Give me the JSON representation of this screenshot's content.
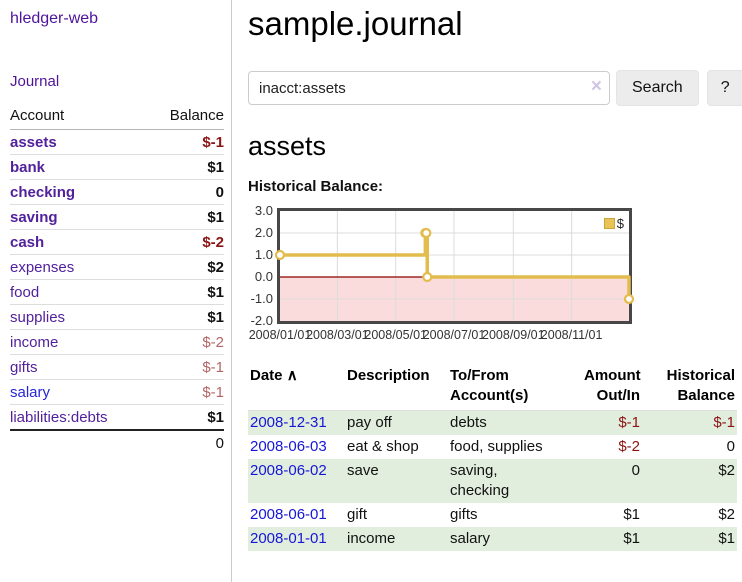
{
  "app": {
    "brand": "hledger-web"
  },
  "nav": {
    "journal": "Journal"
  },
  "sidebar": {
    "columns": {
      "account": "Account",
      "balance": "Balance"
    },
    "accounts": [
      {
        "name": "assets",
        "balance": "$-1",
        "indent": 1,
        "bold": true,
        "name_color": "purple",
        "balance_style": "neg"
      },
      {
        "name": "bank",
        "balance": "$1",
        "indent": 2,
        "bold": true,
        "name_color": "purple",
        "balance_style": "pos"
      },
      {
        "name": "checking",
        "balance": "0",
        "indent": 3,
        "bold": true,
        "name_color": "purple",
        "balance_style": "pos"
      },
      {
        "name": "saving",
        "balance": "$1",
        "indent": 3,
        "bold": true,
        "name_color": "purple",
        "balance_style": "pos"
      },
      {
        "name": "cash",
        "balance": "$-2",
        "indent": 2,
        "bold": true,
        "name_color": "purple",
        "balance_style": "neg"
      },
      {
        "name": "expenses",
        "balance": "$2",
        "indent": 1,
        "bold": false,
        "name_color": "purple",
        "balance_style": "pos"
      },
      {
        "name": "food",
        "balance": "$1",
        "indent": 2,
        "bold": false,
        "name_color": "purple",
        "balance_style": "pos"
      },
      {
        "name": "supplies",
        "balance": "$1",
        "indent": 2,
        "bold": false,
        "name_color": "purple",
        "balance_style": "pos"
      },
      {
        "name": "income",
        "balance": "$-2",
        "indent": 1,
        "bold": false,
        "name_color": "purple",
        "balance_style": "negsoft"
      },
      {
        "name": "gifts",
        "balance": "$-1",
        "indent": 2,
        "bold": false,
        "name_color": "purple",
        "balance_style": "negsoft"
      },
      {
        "name": "salary",
        "balance": "$-1",
        "indent": 2,
        "bold": false,
        "name_color": "blue",
        "balance_style": "negsoft"
      },
      {
        "name": "liabilities:debts",
        "balance": "$1",
        "indent": 1,
        "bold": false,
        "name_color": "purple",
        "balance_style": "pos"
      }
    ],
    "total": "0"
  },
  "main": {
    "title": "sample.journal",
    "search": {
      "value": "inacct:assets",
      "clear_icon": "×",
      "button": "Search",
      "help": "?"
    },
    "heading": "assets",
    "chart_title": "Historical Balance:"
  },
  "chart_data": {
    "type": "line",
    "title": "Historical Balance",
    "step": true,
    "x_range": [
      "2008-01-01",
      "2008-12-31"
    ],
    "ylim": [
      -2,
      3
    ],
    "y_ticks": [
      3,
      2,
      1,
      0,
      -1,
      -2
    ],
    "y_tick_labels": [
      "3.0",
      "2.0",
      "1.0",
      "0.0",
      "-1.0",
      "-2.0"
    ],
    "x_tick_labels": [
      "2008/01/01",
      "2008/03/01",
      "2008/05/01",
      "2008/07/01",
      "2008/09/01",
      "2008/11/01"
    ],
    "series": [
      {
        "name": "$",
        "color": "#e3bc4e",
        "points": [
          [
            "2008-01-01",
            1
          ],
          [
            "2008-06-01",
            2
          ],
          [
            "2008-06-02",
            2
          ],
          [
            "2008-06-03",
            0
          ],
          [
            "2008-12-31",
            -1
          ]
        ]
      }
    ],
    "legend": [
      {
        "label": "$",
        "color": "#e8c457"
      }
    ],
    "legend_position": "top-right",
    "grid": true,
    "negative_region_color": "#fbdcdc",
    "zero_line_color": "#8b0000"
  },
  "register": {
    "headers": {
      "date": "Date",
      "sort_indicator": "∧",
      "description": "Description",
      "accounts": "To/From Account(s)",
      "amount": "Amount Out/In",
      "balance": "Historical Balance"
    },
    "rows": [
      {
        "date": "2008-12-31",
        "description": "pay off",
        "accounts": [
          "debts"
        ],
        "amount": "$-1",
        "amount_negative": true,
        "balance": "$-1",
        "balance_negative": true,
        "shaded": true,
        "two_line": false
      },
      {
        "date": "2008-06-03",
        "description": "eat & shop",
        "accounts": [
          "food",
          "supplies"
        ],
        "amount": "$-2",
        "amount_negative": true,
        "balance": "0",
        "balance_negative": false,
        "shaded": false,
        "two_line": false
      },
      {
        "date": "2008-06-02",
        "description": "save",
        "accounts": [
          "saving",
          "checking"
        ],
        "amount": "0",
        "amount_negative": false,
        "balance": "$2",
        "balance_negative": false,
        "shaded": true,
        "two_line": true
      },
      {
        "date": "2008-06-01",
        "description": "gift",
        "accounts": [
          "gifts"
        ],
        "amount": "$1",
        "amount_negative": false,
        "balance": "$2",
        "balance_negative": false,
        "shaded": false,
        "two_line": false
      },
      {
        "date": "2008-01-01",
        "description": "income",
        "accounts": [
          "salary"
        ],
        "amount": "$1",
        "amount_negative": false,
        "balance": "$1",
        "balance_negative": false,
        "shaded": true,
        "two_line": false
      }
    ]
  },
  "colors": {
    "brand_purple": "#4e149c",
    "link_purple": "#52219c",
    "link_blue": "#2626d8",
    "date_blue": "#1616d6",
    "negative_strong": "#8b1414",
    "negative_soft": "#b36565",
    "row_green": "#e2eedd",
    "chart_line": "#e3bc4e",
    "chart_negative_bg": "#fbdcdc",
    "chart_zero_line": "#8b0000"
  }
}
